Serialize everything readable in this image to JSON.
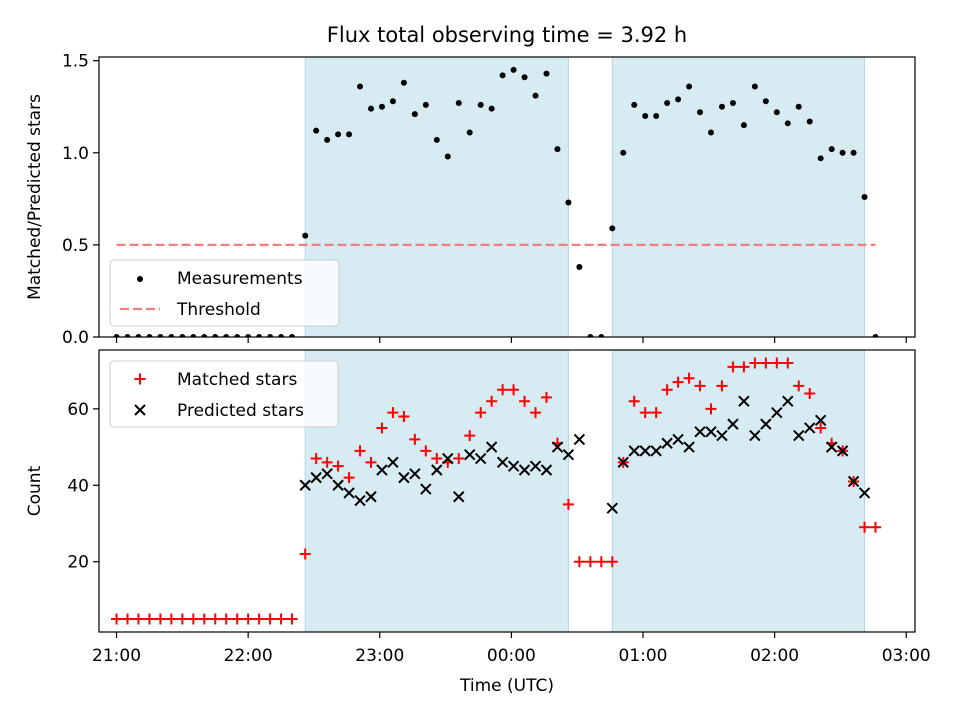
{
  "title": "Flux total observing time = 3.92 h",
  "chart_data": [
    {
      "type": "scatter",
      "panel": "top",
      "ylabel": "Matched/Predicted stars",
      "xlabel": "",
      "xlim": [
        "20:52",
        "03:04"
      ],
      "ylim": [
        0,
        1.52
      ],
      "yticks": [
        0.0,
        0.5,
        1.0,
        1.5
      ],
      "ytick_labels": [
        "0.0",
        "0.5",
        "1.0",
        "1.5"
      ],
      "xticks": [
        "21:00",
        "22:00",
        "23:00",
        "00:00",
        "01:00",
        "02:00",
        "03:00"
      ],
      "shaded_intervals": [
        [
          "22:26",
          "00:26"
        ],
        [
          "00:46",
          "02:41"
        ]
      ],
      "shade_color": "#add8e6",
      "legend": {
        "location": "lower-left",
        "entries": [
          {
            "label": "Measurements",
            "marker": "dot",
            "color": "#000000"
          },
          {
            "label": "Threshold",
            "marker": "dashed-line",
            "color": "#f08080"
          }
        ]
      },
      "threshold": {
        "y": 0.5,
        "x_start": "21:00",
        "x_end": "02:46",
        "color": "#f08080"
      },
      "series": [
        {
          "name": "Measurements",
          "color": "#000000",
          "points": [
            [
              "21:00",
              0.0
            ],
            [
              "21:05",
              0.0
            ],
            [
              "21:10",
              0.0
            ],
            [
              "21:15",
              0.0
            ],
            [
              "21:20",
              0.0
            ],
            [
              "21:25",
              0.0
            ],
            [
              "21:30",
              0.0
            ],
            [
              "21:35",
              0.0
            ],
            [
              "21:40",
              0.0
            ],
            [
              "21:45",
              0.0
            ],
            [
              "21:50",
              0.0
            ],
            [
              "21:55",
              0.0
            ],
            [
              "22:00",
              0.0
            ],
            [
              "22:05",
              0.0
            ],
            [
              "22:10",
              0.0
            ],
            [
              "22:15",
              0.0
            ],
            [
              "22:20",
              0.0
            ],
            [
              "22:26",
              0.55
            ],
            [
              "22:31",
              1.12
            ],
            [
              "22:36",
              1.07
            ],
            [
              "22:41",
              1.1
            ],
            [
              "22:46",
              1.1
            ],
            [
              "22:51",
              1.36
            ],
            [
              "22:56",
              1.24
            ],
            [
              "23:01",
              1.25
            ],
            [
              "23:06",
              1.28
            ],
            [
              "23:11",
              1.38
            ],
            [
              "23:16",
              1.21
            ],
            [
              "23:21",
              1.26
            ],
            [
              "23:26",
              1.07
            ],
            [
              "23:31",
              0.98
            ],
            [
              "23:36",
              1.27
            ],
            [
              "23:41",
              1.11
            ],
            [
              "23:46",
              1.26
            ],
            [
              "23:51",
              1.24
            ],
            [
              "23:56",
              1.42
            ],
            [
              "00:01",
              1.45
            ],
            [
              "00:06",
              1.41
            ],
            [
              "00:11",
              1.31
            ],
            [
              "00:16",
              1.43
            ],
            [
              "00:21",
              1.02
            ],
            [
              "00:26",
              0.73
            ],
            [
              "00:31",
              0.38
            ],
            [
              "00:36",
              0.0
            ],
            [
              "00:41",
              0.0
            ],
            [
              "00:46",
              0.59
            ],
            [
              "00:51",
              1.0
            ],
            [
              "00:56",
              1.26
            ],
            [
              "01:01",
              1.2
            ],
            [
              "01:06",
              1.2
            ],
            [
              "01:11",
              1.27
            ],
            [
              "01:16",
              1.29
            ],
            [
              "01:21",
              1.36
            ],
            [
              "01:26",
              1.22
            ],
            [
              "01:31",
              1.11
            ],
            [
              "01:36",
              1.25
            ],
            [
              "01:41",
              1.27
            ],
            [
              "01:46",
              1.15
            ],
            [
              "01:51",
              1.36
            ],
            [
              "01:56",
              1.28
            ],
            [
              "02:01",
              1.22
            ],
            [
              "02:06",
              1.16
            ],
            [
              "02:11",
              1.25
            ],
            [
              "02:16",
              1.17
            ],
            [
              "02:21",
              0.97
            ],
            [
              "02:26",
              1.02
            ],
            [
              "02:31",
              1.0
            ],
            [
              "02:36",
              1.0
            ],
            [
              "02:41",
              0.76
            ],
            [
              "02:46",
              0.0
            ]
          ]
        }
      ]
    },
    {
      "type": "scatter",
      "panel": "bottom",
      "ylabel": "Count",
      "xlabel": "Time (UTC)",
      "xlim": [
        "20:52",
        "03:04"
      ],
      "ylim": [
        1.6,
        75.4
      ],
      "yticks": [
        20,
        40,
        60
      ],
      "ytick_labels": [
        "20",
        "40",
        "60"
      ],
      "xticks": [
        "21:00",
        "22:00",
        "23:00",
        "00:00",
        "01:00",
        "02:00",
        "03:00"
      ],
      "xtick_labels": [
        "21:00",
        "22:00",
        "23:00",
        "00:00",
        "01:00",
        "02:00",
        "03:00"
      ],
      "shaded_intervals": [
        [
          "22:26",
          "00:26"
        ],
        [
          "00:46",
          "02:41"
        ]
      ],
      "shade_color": "#add8e6",
      "legend": {
        "location": "upper-left",
        "entries": [
          {
            "label": "Matched stars",
            "marker": "plus",
            "color": "#ff0000"
          },
          {
            "label": "Predicted stars",
            "marker": "x",
            "color": "#000000"
          }
        ]
      },
      "series": [
        {
          "name": "Matched stars",
          "color": "#ff0000",
          "marker": "plus",
          "points": [
            [
              "21:00",
              5
            ],
            [
              "21:05",
              5
            ],
            [
              "21:10",
              5
            ],
            [
              "21:15",
              5
            ],
            [
              "21:20",
              5
            ],
            [
              "21:25",
              5
            ],
            [
              "21:30",
              5
            ],
            [
              "21:35",
              5
            ],
            [
              "21:40",
              5
            ],
            [
              "21:45",
              5
            ],
            [
              "21:50",
              5
            ],
            [
              "21:55",
              5
            ],
            [
              "22:00",
              5
            ],
            [
              "22:05",
              5
            ],
            [
              "22:10",
              5
            ],
            [
              "22:15",
              5
            ],
            [
              "22:20",
              5
            ],
            [
              "22:26",
              22
            ],
            [
              "22:31",
              47
            ],
            [
              "22:36",
              46
            ],
            [
              "22:41",
              45
            ],
            [
              "22:46",
              42
            ],
            [
              "22:51",
              49
            ],
            [
              "22:56",
              46
            ],
            [
              "23:01",
              55
            ],
            [
              "23:06",
              59
            ],
            [
              "23:11",
              58
            ],
            [
              "23:16",
              52
            ],
            [
              "23:21",
              49
            ],
            [
              "23:26",
              47
            ],
            [
              "23:31",
              46
            ],
            [
              "23:36",
              47
            ],
            [
              "23:41",
              53
            ],
            [
              "23:46",
              59
            ],
            [
              "23:51",
              62
            ],
            [
              "23:56",
              65
            ],
            [
              "00:01",
              65
            ],
            [
              "00:06",
              62
            ],
            [
              "00:11",
              59
            ],
            [
              "00:16",
              63
            ],
            [
              "00:21",
              51
            ],
            [
              "00:26",
              35
            ],
            [
              "00:31",
              20
            ],
            [
              "00:36",
              20
            ],
            [
              "00:41",
              20
            ],
            [
              "00:46",
              20
            ],
            [
              "00:51",
              46
            ],
            [
              "00:56",
              62
            ],
            [
              "01:01",
              59
            ],
            [
              "01:06",
              59
            ],
            [
              "01:11",
              65
            ],
            [
              "01:16",
              67
            ],
            [
              "01:21",
              68
            ],
            [
              "01:26",
              66
            ],
            [
              "01:31",
              60
            ],
            [
              "01:36",
              66
            ],
            [
              "01:41",
              71
            ],
            [
              "01:46",
              71
            ],
            [
              "01:51",
              72
            ],
            [
              "01:56",
              72
            ],
            [
              "02:01",
              72
            ],
            [
              "02:06",
              72
            ],
            [
              "02:11",
              66
            ],
            [
              "02:16",
              64
            ],
            [
              "02:21",
              55
            ],
            [
              "02:26",
              51
            ],
            [
              "02:31",
              49
            ],
            [
              "02:36",
              41
            ],
            [
              "02:41",
              29
            ],
            [
              "02:46",
              29
            ]
          ]
        },
        {
          "name": "Predicted stars",
          "color": "#000000",
          "marker": "x",
          "points": [
            [
              "22:26",
              40
            ],
            [
              "22:31",
              42
            ],
            [
              "22:36",
              43
            ],
            [
              "22:41",
              40
            ],
            [
              "22:46",
              38
            ],
            [
              "22:51",
              36
            ],
            [
              "22:56",
              37
            ],
            [
              "23:01",
              44
            ],
            [
              "23:06",
              46
            ],
            [
              "23:11",
              42
            ],
            [
              "23:16",
              43
            ],
            [
              "23:21",
              39
            ],
            [
              "23:26",
              44
            ],
            [
              "23:31",
              47
            ],
            [
              "23:36",
              37
            ],
            [
              "23:41",
              48
            ],
            [
              "23:46",
              47
            ],
            [
              "23:51",
              50
            ],
            [
              "23:56",
              46
            ],
            [
              "00:01",
              45
            ],
            [
              "00:06",
              44
            ],
            [
              "00:11",
              45
            ],
            [
              "00:16",
              44
            ],
            [
              "00:21",
              50
            ],
            [
              "00:26",
              48
            ],
            [
              "00:31",
              52
            ],
            [
              "00:46",
              34
            ],
            [
              "00:51",
              46
            ],
            [
              "00:56",
              49
            ],
            [
              "01:01",
              49
            ],
            [
              "01:06",
              49
            ],
            [
              "01:11",
              51
            ],
            [
              "01:16",
              52
            ],
            [
              "01:21",
              50
            ],
            [
              "01:26",
              54
            ],
            [
              "01:31",
              54
            ],
            [
              "01:36",
              53
            ],
            [
              "01:41",
              56
            ],
            [
              "01:46",
              62
            ],
            [
              "01:51",
              53
            ],
            [
              "01:56",
              56
            ],
            [
              "02:01",
              59
            ],
            [
              "02:06",
              62
            ],
            [
              "02:11",
              53
            ],
            [
              "02:16",
              55
            ],
            [
              "02:21",
              57
            ],
            [
              "02:26",
              50
            ],
            [
              "02:31",
              49
            ],
            [
              "02:36",
              41
            ],
            [
              "02:41",
              38
            ]
          ]
        }
      ]
    }
  ]
}
